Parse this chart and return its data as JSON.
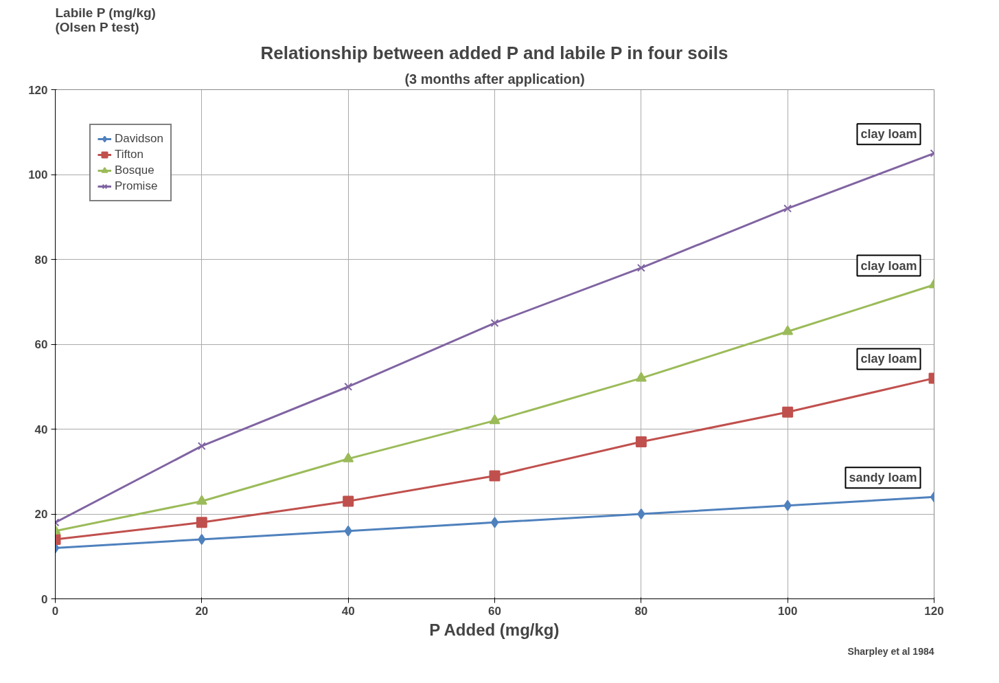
{
  "chart_data": {
    "type": "line",
    "title": "Relationship between added P and labile P in four soils",
    "subtitle": "(3 months after application)",
    "xlabel": "P Added (mg/kg)",
    "ylabel": "Labile P (mg/kg)\n(Olsen P test)",
    "x": [
      0,
      20,
      40,
      60,
      80,
      100,
      120
    ],
    "series": [
      {
        "name": "Davidson",
        "color": "#4f81bd",
        "marker": "diamond",
        "values": [
          12,
          14,
          16,
          18,
          20,
          22,
          24
        ]
      },
      {
        "name": "Tifton",
        "color": "#c0504d",
        "marker": "square",
        "values": [
          14,
          18,
          23,
          29,
          37,
          44,
          52
        ]
      },
      {
        "name": "Bosque",
        "color": "#9bbb59",
        "marker": "triangle",
        "values": [
          16,
          23,
          33,
          42,
          52,
          63,
          74
        ]
      },
      {
        "name": "Promise",
        "color": "#8064a2",
        "marker": "cross",
        "values": [
          18,
          36,
          50,
          65,
          78,
          92,
          105
        ]
      }
    ],
    "xlim": [
      0,
      120
    ],
    "ylim": [
      0,
      120
    ],
    "xticks": [
      0,
      20,
      40,
      60,
      80,
      100,
      120
    ],
    "yticks": [
      0,
      20,
      40,
      60,
      80,
      100,
      120
    ],
    "grid": true,
    "legend": "top left",
    "annotations": [
      "clay loam",
      "clay loam",
      "clay loam",
      "sandy loam",
      "Sharpley et al 1984"
    ]
  }
}
